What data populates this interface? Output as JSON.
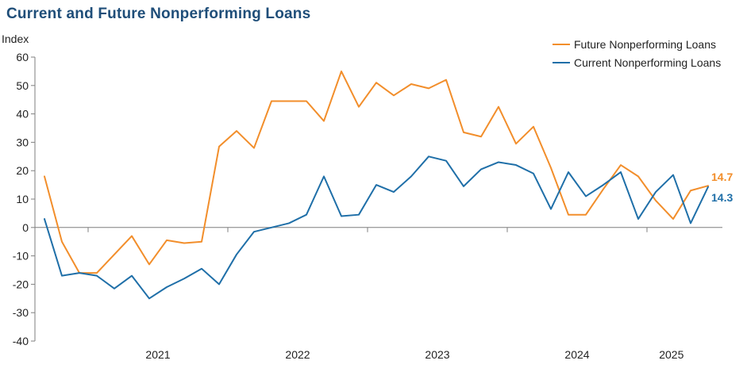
{
  "chart_data": {
    "type": "line",
    "title": "Current and Future Nonperforming Loans",
    "ylabel": "Index",
    "xlabel": "",
    "ylim": [
      -40,
      60
    ],
    "yticks": [
      60,
      50,
      40,
      30,
      20,
      10,
      0,
      -10,
      -20,
      -30,
      -40
    ],
    "year_labels": [
      "2021",
      "2022",
      "2023",
      "2024",
      "2025"
    ],
    "x_count": 39,
    "legend_position": "top-right",
    "series": [
      {
        "name": "Future Nonperforming Loans",
        "color": "#f28e2b",
        "end_label": "14.7",
        "values": [
          18,
          -5,
          -16,
          -16,
          -9.5,
          -3,
          -13,
          -4.5,
          -5.5,
          -5,
          28.5,
          34,
          28,
          44.5,
          44.5,
          44.5,
          37.5,
          55,
          42.5,
          51,
          46.5,
          50.5,
          49,
          52,
          33.5,
          32,
          42.5,
          29.5,
          35.5,
          21,
          4.5,
          4.5,
          13.5,
          22,
          18,
          9.5,
          3,
          13,
          14.7
        ]
      },
      {
        "name": "Current Nonperforming Loans",
        "color": "#1f6fa8",
        "end_label": "14.3",
        "values": [
          3,
          -17,
          -16,
          -17,
          -21.5,
          -17,
          -25,
          -21,
          -18,
          -14.5,
          -20,
          -9.5,
          -1.5,
          0,
          1.5,
          4.5,
          18,
          4,
          4.5,
          15,
          12.5,
          18,
          25,
          23.5,
          14.5,
          20.5,
          23,
          22,
          19,
          6.5,
          19.5,
          11,
          15,
          19.5,
          3,
          12.5,
          18.5,
          1.5,
          14.3
        ]
      }
    ]
  }
}
